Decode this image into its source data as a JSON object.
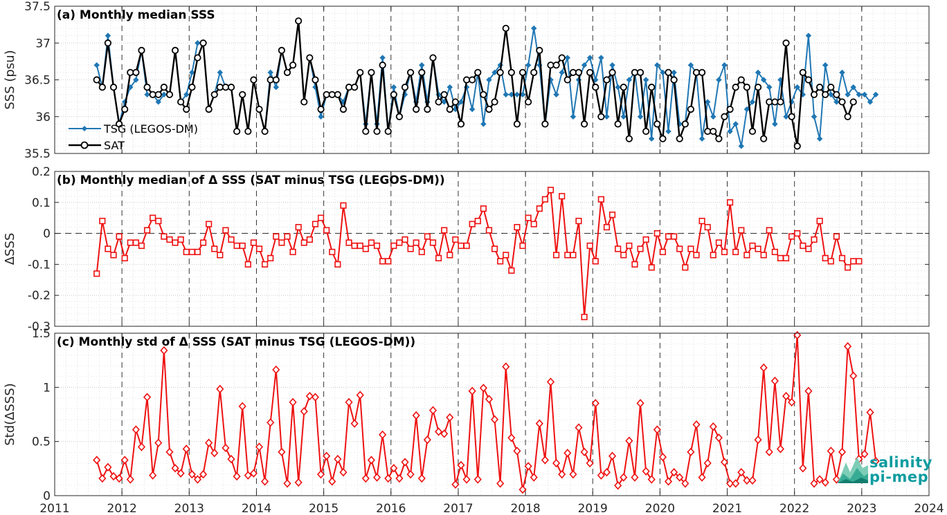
{
  "x_ticks": [
    "2011",
    "2012",
    "2013",
    "2014",
    "2015",
    "2016",
    "2017",
    "2018",
    "2019",
    "2020",
    "2021",
    "2022",
    "2023",
    "2024"
  ],
  "logo": {
    "line1": "salinity",
    "line2": "pi-mep"
  },
  "colors": {
    "tsg": "#1f77b4",
    "sat": "#000000",
    "delta": "#ee1111",
    "std": "#ee1111"
  },
  "chart_data": [
    {
      "type": "line",
      "title": "(a) Monthly median SSS",
      "ylabel": "SSS (psu)",
      "xlim": [
        2011,
        2024
      ],
      "ylim": [
        35.5,
        37.5
      ],
      "y_ticks": [
        "35.5",
        "36",
        "36.5",
        "37",
        "37.5"
      ],
      "grid": true,
      "legend": "left, below middle",
      "x_start": 2011.625,
      "x_step_months": 1,
      "series": [
        {
          "name": "TSG (LEGOS-DM)",
          "marker": "diamond",
          "values": [
            36.7,
            36.4,
            37.1,
            36.4,
            35.9,
            36.2,
            36.4,
            36.5,
            36.9,
            36.3,
            36.3,
            36.2,
            36.3,
            36.3,
            36.9,
            36.2,
            36.3,
            36.6,
            37.0,
            37.0,
            36.1,
            36.3,
            36.6,
            36.4,
            36.4,
            35.8,
            36.3,
            35.8,
            36.5,
            36.1,
            35.8,
            36.6,
            36.4,
            36.9,
            36.6,
            36.7,
            37.3,
            36.2,
            36.8,
            36.4,
            36.0,
            36.3,
            36.3,
            36.3,
            36.2,
            36.4,
            36.4,
            36.6,
            35.9,
            36.6,
            35.9,
            36.8,
            35.8,
            36.4,
            36.0,
            36.3,
            36.6,
            36.2,
            36.7,
            36.2,
            36.8,
            36.3,
            36.2,
            36.4,
            36.1,
            36.2,
            36.4,
            36.1,
            36.6,
            35.9,
            36.5,
            36.6,
            36.7,
            36.3,
            36.3,
            36.3,
            36.3,
            36.7,
            37.2,
            36.7,
            35.9,
            36.5,
            36.3,
            36.6,
            36.8,
            36.0,
            36.5,
            36.7,
            36.8,
            36.5,
            36.8,
            36.0,
            36.7,
            36.4,
            36.0,
            36.5,
            36.6,
            36.0,
            36.5,
            35.7,
            36.7,
            36.6,
            35.8,
            36.6,
            35.9,
            35.9,
            36.7,
            36.6,
            35.7,
            36.2,
            36.0,
            36.5,
            36.7,
            35.8,
            35.9,
            35.6,
            36.1,
            36.2,
            36.6,
            36.5,
            36.4,
            35.9,
            36.5,
            36.0,
            36.2,
            36.4,
            36.3,
            37.1,
            36.0,
            35.7,
            36.7,
            36.3,
            36.2,
            36.6,
            36.3,
            36.4,
            36.3,
            36.3,
            36.2,
            36.3
          ]
        },
        {
          "name": "SAT",
          "marker": "circle",
          "values": [
            36.5,
            36.4,
            37.0,
            36.4,
            35.9,
            36.1,
            36.6,
            36.6,
            36.9,
            36.4,
            36.3,
            36.3,
            36.4,
            36.3,
            36.9,
            36.2,
            36.1,
            36.4,
            36.8,
            37.0,
            36.1,
            36.3,
            36.4,
            36.4,
            36.4,
            35.8,
            36.3,
            35.8,
            36.5,
            36.1,
            35.8,
            36.5,
            36.5,
            36.9,
            36.6,
            36.7,
            37.3,
            36.2,
            36.8,
            36.5,
            36.1,
            36.3,
            36.3,
            36.3,
            36.1,
            36.4,
            36.4,
            36.6,
            35.8,
            36.6,
            35.8,
            36.7,
            35.8,
            36.3,
            36.0,
            36.4,
            36.6,
            36.1,
            36.6,
            36.1,
            36.8,
            36.2,
            36.3,
            36.1,
            36.2,
            35.9,
            36.5,
            36.5,
            36.6,
            36.3,
            36.1,
            36.2,
            36.6,
            37.2,
            36.6,
            35.9,
            36.6,
            36.2,
            36.6,
            36.9,
            35.9,
            36.7,
            36.7,
            36.8,
            36.5,
            36.6,
            36.6,
            35.9,
            36.6,
            36.4,
            36.0,
            36.5,
            36.6,
            35.9,
            36.4,
            35.7,
            36.6,
            36.6,
            35.8,
            36.4,
            35.9,
            35.7,
            36.6,
            36.5,
            35.7,
            35.9,
            36.1,
            36.6,
            36.6,
            35.8,
            35.8,
            35.7,
            36.0,
            36.1,
            36.4,
            36.5,
            36.4,
            35.8,
            36.4,
            35.7,
            36.2,
            36.2,
            36.2,
            37.0,
            36.0,
            35.6,
            36.6,
            36.5,
            36.3,
            36.4,
            36.3,
            36.4,
            36.3,
            36.2,
            36.0,
            36.2
          ]
        }
      ]
    },
    {
      "type": "line",
      "title": "(b) Monthly median of Δ SSS (SAT minus TSG (LEGOS-DM))",
      "ylabel": "ΔSSS",
      "xlim": [
        2011,
        2024
      ],
      "ylim": [
        -0.3,
        0.2
      ],
      "y_ticks": [
        "-0.3",
        "-0.2",
        "-0.1",
        "0",
        "0.1",
        "0.2"
      ],
      "grid": true,
      "zero_line": "dashed",
      "x_start": 2011.625,
      "x_step_months": 1,
      "series": [
        {
          "name": "",
          "marker": "square",
          "values": [
            -0.13,
            0.04,
            -0.05,
            -0.07,
            -0.01,
            -0.08,
            -0.03,
            -0.03,
            -0.04,
            0.01,
            0.05,
            0.04,
            -0.01,
            -0.02,
            -0.03,
            -0.02,
            -0.06,
            -0.06,
            -0.06,
            -0.03,
            0.03,
            -0.05,
            -0.07,
            0.01,
            -0.02,
            -0.04,
            -0.04,
            -0.1,
            -0.03,
            -0.05,
            -0.1,
            -0.08,
            -0.01,
            -0.03,
            -0.01,
            -0.06,
            0.02,
            -0.03,
            -0.02,
            0.03,
            0.05,
            0.01,
            -0.06,
            -0.1,
            0.09,
            -0.03,
            -0.04,
            -0.04,
            -0.05,
            -0.03,
            -0.04,
            -0.09,
            -0.09,
            -0.04,
            -0.03,
            -0.02,
            -0.05,
            -0.03,
            -0.06,
            -0.01,
            -0.03,
            -0.08,
            0.01,
            -0.07,
            -0.02,
            -0.04,
            -0.04,
            0.03,
            0.04,
            0.08,
            0.01,
            -0.05,
            -0.09,
            -0.07,
            -0.12,
            0.02,
            -0.04,
            0.05,
            0.03,
            0.08,
            0.11,
            0.14,
            -0.07,
            0.12,
            -0.07,
            -0.07,
            0.04,
            -0.27,
            -0.04,
            -0.09,
            0.11,
            0.02,
            0.06,
            -0.05,
            -0.07,
            -0.04,
            -0.1,
            -0.05,
            -0.02,
            -0.11,
            0.0,
            -0.06,
            -0.01,
            -0.01,
            -0.05,
            -0.11,
            -0.05,
            -0.07,
            0.04,
            0.02,
            -0.07,
            -0.03,
            -0.06,
            0.1,
            -0.06,
            0.01,
            -0.07,
            -0.04,
            -0.05,
            -0.07,
            0.01,
            -0.06,
            -0.08,
            -0.08,
            -0.01,
            0.0,
            -0.04,
            -0.05,
            -0.02,
            0.04,
            -0.08,
            -0.09,
            -0.01,
            -0.08,
            -0.11,
            -0.09,
            -0.09
          ]
        }
      ]
    },
    {
      "type": "line",
      "title": "(c) Monthly std of Δ SSS (SAT minus TSG (LEGOS-DM))",
      "ylabel": "Std(ΔSSS)",
      "xlim": [
        2011,
        2024
      ],
      "ylim": [
        0,
        1.6
      ],
      "y_ticks": [
        "0",
        "0.5",
        "1",
        "1.5"
      ],
      "grid": true,
      "x_start": 2011.625,
      "x_step_months": 1,
      "series": [
        {
          "name": "",
          "marker": "diamond",
          "values": [
            0.35,
            0.17,
            0.28,
            0.19,
            0.17,
            0.35,
            0.16,
            0.65,
            0.48,
            0.97,
            0.2,
            0.52,
            1.43,
            0.43,
            0.27,
            0.22,
            0.46,
            0.21,
            0.16,
            0.21,
            0.52,
            0.42,
            1.05,
            0.47,
            0.36,
            0.19,
            0.88,
            0.2,
            0.22,
            0.48,
            0.14,
            0.72,
            1.24,
            0.43,
            0.12,
            0.92,
            0.13,
            0.83,
            0.98,
            0.97,
            0.21,
            0.39,
            0.14,
            0.36,
            0.23,
            0.92,
            0.71,
            0.99,
            0.17,
            0.35,
            0.18,
            0.6,
            0.17,
            0.27,
            0.17,
            0.33,
            0.21,
            0.79,
            0.17,
            0.55,
            0.84,
            0.63,
            0.61,
            0.77,
            0.11,
            0.3,
            0.16,
            1.03,
            0.16,
            1.06,
            0.95,
            0.75,
            0.12,
            1.27,
            0.57,
            0.44,
            0.06,
            0.29,
            0.18,
            0.71,
            0.35,
            1.12,
            0.32,
            0.21,
            0.42,
            0.21,
            0.67,
            0.43,
            0.32,
            0.91,
            0.2,
            0.23,
            0.39,
            0.1,
            0.18,
            0.54,
            0.18,
            0.91,
            0.24,
            0.16,
            0.65,
            0.38,
            0.14,
            0.23,
            0.18,
            0.12,
            0.43,
            0.7,
            0.18,
            0.32,
            0.68,
            0.57,
            0.33,
            0.12,
            0.12,
            0.23,
            0.15,
            0.15,
            0.55,
            1.26,
            0.43,
            1.13,
            0.46,
            0.98,
            0.92,
            1.58,
            0.27,
            1.03,
            0.12,
            0.16,
            0.13,
            0.44,
            0.16,
            0.43,
            1.47,
            1.18,
            0.36,
            0.41,
            0.82,
            0.34
          ]
        }
      ]
    }
  ]
}
